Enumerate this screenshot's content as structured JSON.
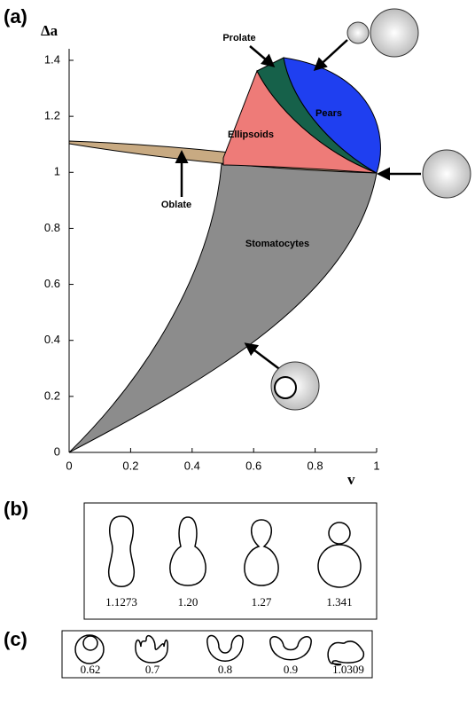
{
  "chart_data": {
    "type": "phase-diagram",
    "panel_label": "(a)",
    "xlabel": "v",
    "ylabel": "Δa",
    "xlim": [
      0,
      1
    ],
    "ylim": [
      0,
      1.4
    ],
    "xticks": [
      0,
      0.2,
      0.4,
      0.6,
      0.8,
      1
    ],
    "yticks": [
      0,
      0.2,
      0.4,
      0.6,
      0.8,
      1,
      1.2,
      1.4
    ],
    "regions": [
      {
        "name": "Stomatocytes",
        "color": "#8c8c8c"
      },
      {
        "name": "Oblate",
        "color": "#c8aa82"
      },
      {
        "name": "Ellipsoids",
        "color": "#ee7b78"
      },
      {
        "name": "Prolate",
        "color": "#16614a"
      },
      {
        "name": "Pears",
        "color": "#1f3ff0"
      }
    ]
  },
  "panel_b": {
    "label": "(b)",
    "shapes": [
      "1.1273",
      "1.20",
      "1.27",
      "1.341"
    ]
  },
  "panel_c": {
    "label": "(c)",
    "shapes": [
      "0.62",
      "0.7",
      "0.8",
      "0.9",
      "1.0309"
    ]
  }
}
